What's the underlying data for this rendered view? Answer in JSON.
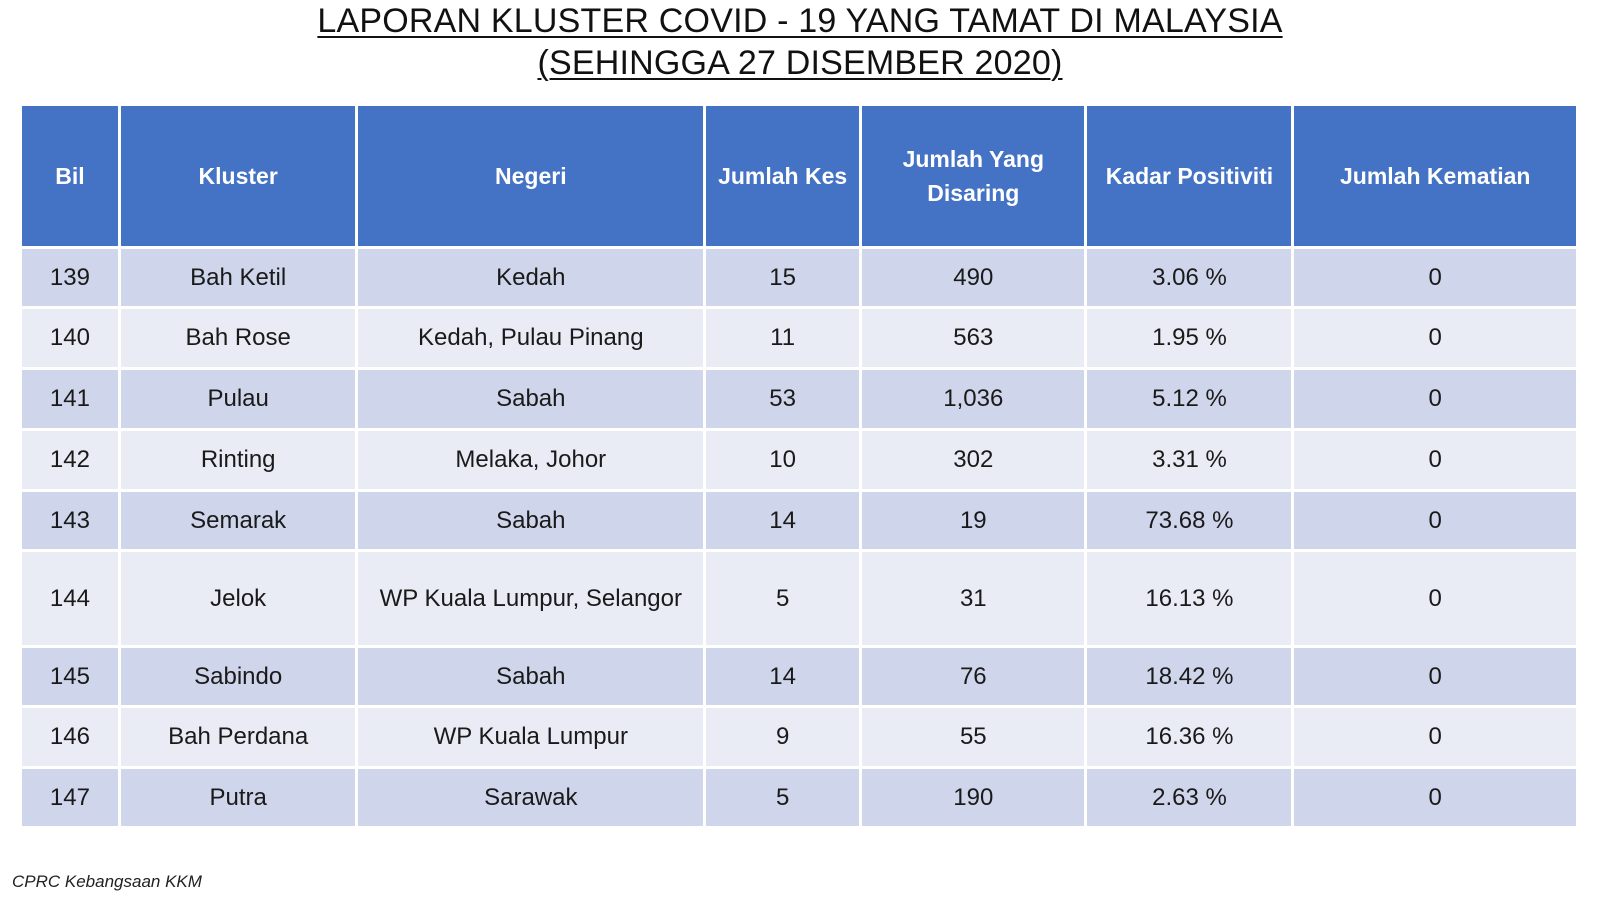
{
  "title_line1": "LAPORAN KLUSTER COVID - 19 YANG TAMAT DI MALAYSIA",
  "title_line2": "(SEHINGGA 27 DISEMBER 2020)",
  "table": {
    "headers": [
      "Bil",
      "Kluster",
      "Negeri",
      "Jumlah Kes",
      "Jumlah Yang Disaring",
      "Kadar Positiviti",
      "Jumlah Kematian"
    ],
    "rows": [
      [
        "139",
        "Bah Ketil",
        "Kedah",
        "15",
        "490",
        "3.06 %",
        "0"
      ],
      [
        "140",
        "Bah Rose",
        "Kedah, Pulau Pinang",
        "11",
        "563",
        "1.95 %",
        "0"
      ],
      [
        "141",
        "Pulau",
        "Sabah",
        "53",
        "1,036",
        "5.12 %",
        "0"
      ],
      [
        "142",
        "Rinting",
        "Melaka, Johor",
        "10",
        "302",
        "3.31 %",
        "0"
      ],
      [
        "143",
        "Semarak",
        "Sabah",
        "14",
        "19",
        "73.68 %",
        "0"
      ],
      [
        "144",
        "Jelok",
        "WP Kuala Lumpur, Selangor",
        "5",
        "31",
        "16.13 %",
        "0"
      ],
      [
        "145",
        "Sabindo",
        "Sabah",
        "14",
        "76",
        "18.42 %",
        "0"
      ],
      [
        "146",
        "Bah Perdana",
        "WP Kuala Lumpur",
        "9",
        "55",
        "16.36 %",
        "0"
      ],
      [
        "147",
        "Putra",
        "Sarawak",
        "5",
        "190",
        "2.63 %",
        "0"
      ]
    ]
  },
  "source": "CPRC Kebangsaan KKM",
  "colors": {
    "header_bg": "#4472c4",
    "row_dark": "#cfd5ea",
    "row_light": "#e9ebf5"
  }
}
